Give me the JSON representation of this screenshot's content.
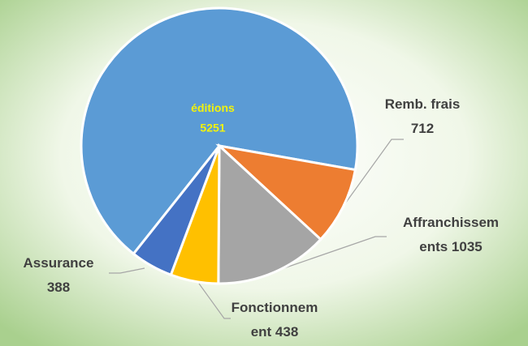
{
  "chart_data": {
    "type": "pie",
    "categories": [
      "éditions",
      "Remb. frais",
      "Affranchissements",
      "Fonctionnement",
      "Assurance"
    ],
    "values": [
      5251,
      712,
      1035,
      438,
      388
    ],
    "colors": [
      "#5b9bd5",
      "#ed7d31",
      "#a5a5a5",
      "#ffc000",
      "#4472c4"
    ]
  }
}
